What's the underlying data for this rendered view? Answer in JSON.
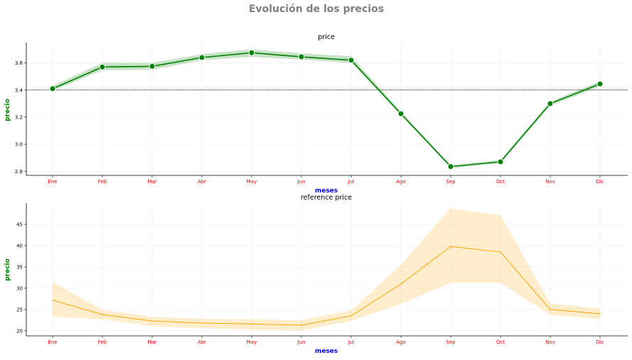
{
  "figure": {
    "suptitle": "Evolución de los precios"
  },
  "chart_data": [
    {
      "type": "line",
      "title": "price",
      "xlabel": "meses",
      "ylabel": "precio",
      "categories": [
        "Ene",
        "Feb",
        "Mar",
        "Abr",
        "May",
        "Jun",
        "Jul",
        "Ago",
        "Sep",
        "Oct",
        "Nov",
        "Dic"
      ],
      "series": [
        {
          "values": [
            3.41,
            3.57,
            3.575,
            3.64,
            3.675,
            3.645,
            3.62,
            3.225,
            2.835,
            2.87,
            3.3,
            3.445
          ],
          "ci_low": [
            3.395,
            3.545,
            3.55,
            3.62,
            3.645,
            3.625,
            3.6,
            3.215,
            2.825,
            2.86,
            3.285,
            3.425
          ],
          "ci_high": [
            3.43,
            3.6,
            3.6,
            3.665,
            3.7,
            3.67,
            3.65,
            3.24,
            2.845,
            2.885,
            3.315,
            3.465
          ],
          "color": "#008000",
          "markers": true
        }
      ],
      "reference_line": 3.4,
      "ylim": [
        2.77,
        3.75
      ],
      "yticks": [
        2.8,
        3.0,
        3.2,
        3.4,
        3.6
      ],
      "ytick_labels": [
        "2.8",
        "3.0",
        "3.2",
        "3.4",
        "3.6"
      ],
      "grid": true
    },
    {
      "type": "line",
      "title": "reference price",
      "xlabel": "meses",
      "ylabel": "precio",
      "categories": [
        "Ene",
        "Feb",
        "Mar",
        "Abr",
        "May",
        "Jun",
        "Jul",
        "Ago",
        "Sep",
        "Oct",
        "Nov",
        "Dic"
      ],
      "series": [
        {
          "values": [
            27.2,
            23.8,
            22.3,
            21.8,
            21.6,
            21.3,
            23.5,
            31.0,
            39.8,
            38.5,
            25.0,
            24.0
          ],
          "ci_low": [
            23.3,
            22.7,
            21.1,
            20.6,
            20.3,
            20.0,
            22.3,
            26.3,
            31.3,
            31.3,
            23.7,
            22.8
          ],
          "ci_high": [
            31.4,
            24.9,
            23.3,
            22.8,
            22.7,
            22.5,
            24.8,
            35.5,
            48.8,
            47.1,
            26.4,
            25.2
          ],
          "color": "#ffa500",
          "markers": false
        }
      ],
      "ylim": [
        18.8,
        50.0
      ],
      "yticks": [
        20,
        25,
        30,
        35,
        40,
        45
      ],
      "ytick_labels": [
        "20",
        "25",
        "30",
        "35",
        "40",
        "45"
      ],
      "grid": true
    }
  ]
}
